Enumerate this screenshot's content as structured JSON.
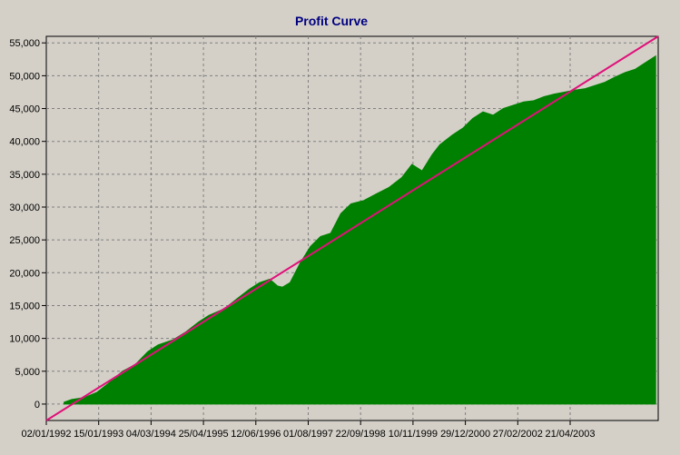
{
  "chart_data": {
    "type": "area",
    "title": "Profit Curve",
    "xlabel": "",
    "ylabel": "",
    "x_tick_labels": [
      "02/01/1992",
      "15/01/1993",
      "04/03/1994",
      "25/04/1995",
      "12/06/1996",
      "01/08/1997",
      "22/09/1998",
      "10/11/1999",
      "29/12/2000",
      "27/02/2002",
      "21/04/2003"
    ],
    "y_tick_labels": [
      "55,000",
      "50,000",
      "45,000",
      "40,000",
      "35,000",
      "30,000",
      "25,000",
      "20,000",
      "15,000",
      "10,000",
      "5,000",
      "0"
    ],
    "y_tick_values": [
      55000,
      50000,
      45000,
      40000,
      35000,
      30000,
      25000,
      20000,
      15000,
      10000,
      5000,
      0
    ],
    "x_range": [
      1992.0,
      2004.05
    ],
    "ylim": [
      -2500,
      56000
    ],
    "grid": true,
    "series": [
      {
        "kind": "area",
        "color": "#008000",
        "x": [
          1992.35,
          1992.5,
          1992.75,
          1993.0,
          1993.2,
          1993.5,
          1993.75,
          1994.0,
          1994.2,
          1994.5,
          1994.75,
          1995.0,
          1995.2,
          1995.5,
          1995.75,
          1996.0,
          1996.2,
          1996.4,
          1996.55,
          1996.65,
          1996.8,
          1997.0,
          1997.2,
          1997.4,
          1997.6,
          1997.8,
          1998.0,
          1998.25,
          1998.5,
          1998.75,
          1999.0,
          1999.2,
          1999.4,
          1999.6,
          1999.75,
          2000.0,
          2000.2,
          2000.4,
          2000.6,
          2000.8,
          2001.0,
          2001.2,
          2001.4,
          2001.6,
          2001.8,
          2002.0,
          2002.2,
          2002.4,
          2002.6,
          2002.8,
          2003.0,
          2003.2,
          2003.4,
          2003.6,
          2003.8,
          2004.0
        ],
        "values": [
          300,
          700,
          1000,
          1800,
          3000,
          5000,
          6000,
          8000,
          9000,
          9800,
          11000,
          12500,
          13500,
          14500,
          16000,
          17500,
          18500,
          19000,
          18000,
          17800,
          18500,
          21500,
          24000,
          25500,
          26000,
          29000,
          30500,
          31000,
          32000,
          33000,
          34500,
          36500,
          35500,
          38000,
          39500,
          41000,
          42000,
          43500,
          44500,
          44000,
          45000,
          45500,
          46000,
          46200,
          46800,
          47200,
          47500,
          47800,
          48000,
          48500,
          49000,
          49800,
          50500,
          51000,
          52000,
          53000
        ]
      },
      {
        "kind": "line",
        "color": "#e0107a",
        "x": [
          1992.0,
          2004.05
        ],
        "values": [
          -2500,
          56000
        ]
      }
    ]
  }
}
